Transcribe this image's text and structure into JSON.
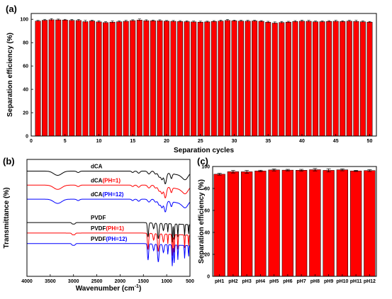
{
  "chart_data": [
    {
      "panel": "(a)",
      "type": "bar",
      "xlabel": "Separation cycles",
      "ylabel": "Separation efficiency (%)",
      "x_ticks": [
        0,
        5,
        10,
        15,
        20,
        25,
        30,
        35,
        40,
        45,
        50
      ],
      "y_ticks": [
        0,
        20,
        40,
        60,
        80,
        100
      ],
      "xlim": [
        0,
        51
      ],
      "ylim": [
        0,
        105
      ],
      "x": [
        1,
        2,
        3,
        4,
        5,
        6,
        7,
        8,
        9,
        10,
        11,
        12,
        13,
        14,
        15,
        16,
        17,
        18,
        19,
        20,
        21,
        22,
        23,
        24,
        25,
        26,
        27,
        28,
        29,
        30,
        31,
        32,
        33,
        34,
        35,
        36,
        37,
        38,
        39,
        40,
        41,
        42,
        43,
        44,
        45,
        46,
        47,
        48,
        49,
        50
      ],
      "values": [
        98.5,
        99.2,
        99.6,
        99.5,
        99.4,
        99.1,
        99.0,
        98.0,
        98.6,
        97.8,
        97.2,
        97.6,
        97.9,
        98.3,
        98.9,
        99.3,
        98.8,
        98.7,
        98.8,
        98.4,
        98.3,
        98.1,
        98.0,
        97.8,
        97.6,
        97.8,
        98.2,
        98.5,
        99.0,
        98.7,
        98.5,
        98.4,
        98.6,
        98.3,
        97.5,
        96.8,
        97.3,
        97.6,
        98.1,
        98.4,
        98.3,
        97.9,
        98.0,
        98.2,
        98.3,
        98.1,
        98.4,
        98.2,
        97.9,
        97.6
      ],
      "errors": [
        0.6,
        0.8,
        1.0,
        0.7,
        0.6,
        0.8,
        0.9,
        1.1,
        0.7,
        0.9,
        0.8,
        0.9,
        0.7,
        0.8,
        0.7,
        1.0,
        0.8,
        0.7,
        0.8,
        0.6,
        0.7,
        0.8,
        0.7,
        0.7,
        0.8,
        0.6,
        0.7,
        0.8,
        0.9,
        0.6,
        0.7,
        0.8,
        0.7,
        0.6,
        0.8,
        1.0,
        0.9,
        0.7,
        0.8,
        0.9,
        0.8,
        0.7,
        0.6,
        0.7,
        0.8,
        0.7,
        0.8,
        0.9,
        0.7,
        0.6
      ]
    },
    {
      "panel": "(b)",
      "type": "line",
      "xlabel": "Wavenumber (cm",
      "xlabel_sup": "-1",
      "xlabel_tail": ")",
      "ylabel": "Transmittance (%)",
      "x_ticks": [
        4000,
        3500,
        3000,
        2500,
        2000,
        1500,
        1000,
        500
      ],
      "xlim": [
        4000,
        500
      ],
      "series": [
        {
          "label_parts": [
            {
              "text": "dCA",
              "color": "#000000"
            }
          ],
          "color": "#000000",
          "baseline": 0.9
        },
        {
          "label_parts": [
            {
              "text": "dCA",
              "color": "#000000"
            },
            {
              "text": "(PH=1)",
              "color": "#ff0000"
            }
          ],
          "color": "#ff0000",
          "baseline": 0.78
        },
        {
          "label_parts": [
            {
              "text": "dCA",
              "color": "#000000"
            },
            {
              "text": "(PH=12)",
              "color": "#0000ff"
            }
          ],
          "color": "#0000ff",
          "baseline": 0.66
        },
        {
          "label_parts": [
            {
              "text": "PVDF",
              "color": "#000000"
            }
          ],
          "color": "#000000",
          "baseline": 0.46
        },
        {
          "label_parts": [
            {
              "text": "PVDF",
              "color": "#000000"
            },
            {
              "text": "(PH=1)",
              "color": "#ff0000"
            }
          ],
          "color": "#ff0000",
          "baseline": 0.37
        },
        {
          "label_parts": [
            {
              "text": "PVDF",
              "color": "#000000"
            },
            {
              "text": "(PH=12)",
              "color": "#0000ff"
            }
          ],
          "color": "#0000ff",
          "baseline": 0.28
        }
      ]
    },
    {
      "panel": "(c)",
      "type": "bar",
      "ylabel": "Separation efficiency (%)",
      "categories": [
        "pH1",
        "pH2",
        "pH3",
        "pH4",
        "pH5",
        "pH6",
        "pH7",
        "pH8",
        "pH9",
        "pH10",
        "pH11",
        "pH12"
      ],
      "values": [
        93.0,
        95.3,
        95.2,
        96.0,
        96.9,
        96.7,
        96.6,
        97.1,
        96.5,
        97.0,
        96.0,
        96.3
      ],
      "errors": [
        0.8,
        1.2,
        1.3,
        0.6,
        0.9,
        0.7,
        0.8,
        1.1,
        1.4,
        0.9,
        0.5,
        0.8
      ],
      "y_ticks": [
        0,
        20,
        40,
        60,
        80,
        100
      ],
      "ylim": [
        0,
        100
      ]
    }
  ],
  "colors": {
    "bar": "#ff0000",
    "edge": "#000000"
  }
}
